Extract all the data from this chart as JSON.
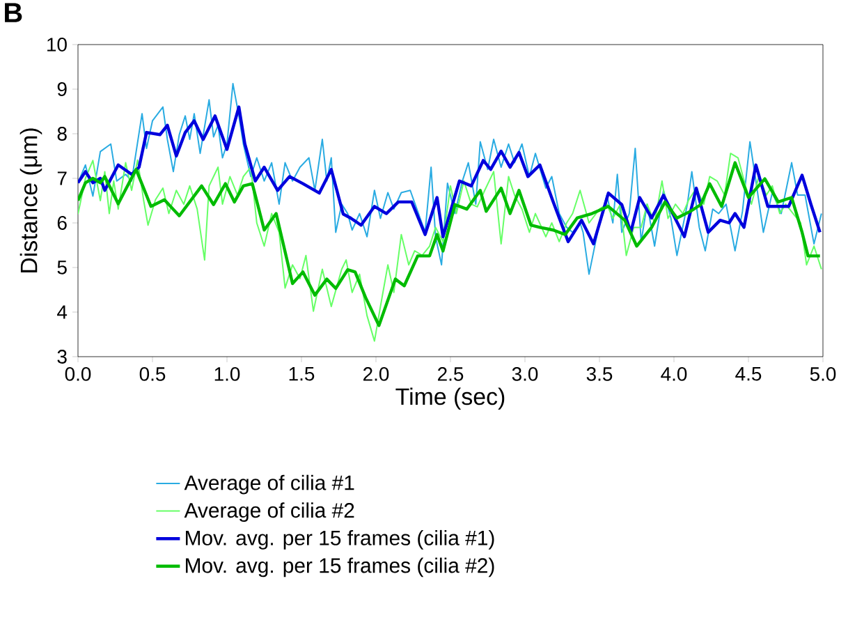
{
  "chart_data": {
    "type": "line",
    "xlabel": "Time (sec)",
    "ylabel": "Distance (μm)",
    "xlim": [
      0,
      5
    ],
    "ylim": [
      3,
      10
    ],
    "xticks": [
      {
        "value": 0,
        "label": "0.0"
      },
      {
        "value": 0.5,
        "label": "0.5"
      },
      {
        "value": 1,
        "label": "1.0"
      },
      {
        "value": 1.5,
        "label": "1.5"
      },
      {
        "value": 2,
        "label": "2.0"
      },
      {
        "value": 2.5,
        "label": "2.5"
      },
      {
        "value": 3,
        "label": "3.0"
      },
      {
        "value": 3.5,
        "label": "3.5"
      },
      {
        "value": 4,
        "label": "4.0"
      },
      {
        "value": 4.5,
        "label": "4.5"
      },
      {
        "value": 5,
        "label": "5.0"
      }
    ],
    "yticks": [
      3,
      4,
      5,
      6,
      7,
      8,
      9,
      10
    ],
    "legend": "bottom",
    "marker": "none",
    "line_style": "solid",
    "annotations": [
      "B"
    ],
    "series": [
      {
        "name": "Average of cilia #1",
        "color": "#29abe2",
        "x": [
          0,
          0.05,
          0.1,
          0.15,
          0.22,
          0.26,
          0.32,
          0.36,
          0.43,
          0.46,
          0.5,
          0.57,
          0.6,
          0.64,
          0.68,
          0.72,
          0.75,
          0.78,
          0.82,
          0.88,
          0.91,
          0.94,
          0.97,
          1.0,
          1.04,
          1.08,
          1.11,
          1.16,
          1.2,
          1.25,
          1.3,
          1.35,
          1.39,
          1.44,
          1.49,
          1.55,
          1.59,
          1.64,
          1.67,
          1.7,
          1.73,
          1.77,
          1.81,
          1.84,
          1.89,
          1.94,
          1.99,
          2.03,
          2.08,
          2.12,
          2.17,
          2.23,
          2.28,
          2.33,
          2.37,
          2.4,
          2.44,
          2.48,
          2.53,
          2.58,
          2.62,
          2.67,
          2.7,
          2.75,
          2.79,
          2.84,
          2.89,
          2.93,
          2.98,
          3.03,
          3.07,
          3.14,
          3.18,
          3.23,
          3.28,
          3.32,
          3.37,
          3.39,
          3.43,
          3.5,
          3.55,
          3.59,
          3.62,
          3.65,
          3.7,
          3.74,
          3.78,
          3.82,
          3.87,
          3.93,
          3.98,
          4.02,
          4.09,
          4.12,
          4.17,
          4.21,
          4.26,
          4.3,
          4.35,
          4.41,
          4.46,
          4.51,
          4.55,
          4.6,
          4.66,
          4.72,
          4.79,
          4.83,
          4.88,
          4.94,
          4.99
        ],
        "values": [
          6.9,
          7.3,
          6.6,
          7.6,
          7.77,
          6.94,
          7.09,
          6.94,
          8.45,
          7.67,
          8.29,
          8.6,
          7.875,
          7.15,
          7.98,
          8.4,
          7.875,
          8.45,
          7.56,
          8.76,
          7.93,
          8.19,
          7.46,
          7.77,
          9.125,
          8.4,
          7.77,
          7.04,
          7.46,
          6.94,
          7.35,
          6.42,
          7.35,
          6.94,
          7.25,
          7.46,
          6.73,
          7.875,
          6.94,
          7.46,
          5.79,
          6.42,
          6.21,
          5.84,
          6.21,
          5.69,
          6.73,
          6.1,
          6.68,
          6.31,
          6.68,
          6.73,
          6.26,
          5.79,
          7.25,
          5.69,
          5.06,
          6.89,
          6.21,
          6.94,
          7.35,
          6.42,
          7.82,
          7.2,
          7.875,
          7.25,
          7.77,
          7.35,
          7.77,
          7.04,
          7.56,
          6.78,
          7.04,
          6.21,
          5.9,
          5.79,
          6.0,
          5.79,
          4.85,
          6.0,
          6.625,
          6.0,
          7.09,
          5.79,
          6.21,
          7.67,
          5.58,
          6.42,
          5.48,
          6.73,
          6.1,
          5.27,
          6.42,
          7.15,
          5.9,
          5.375,
          6.31,
          6.21,
          6.42,
          5.375,
          6.26,
          7.82,
          6.94,
          5.79,
          6.68,
          6.21,
          7.35,
          6.625,
          6.625,
          5.53,
          6.21
        ]
      },
      {
        "name": "Average of cilia #2",
        "color": "#66ff66",
        "x": [
          0,
          0.05,
          0.1,
          0.15,
          0.18,
          0.21,
          0.24,
          0.27,
          0.32,
          0.36,
          0.4,
          0.44,
          0.47,
          0.52,
          0.57,
          0.61,
          0.66,
          0.71,
          0.75,
          0.8,
          0.85,
          0.88,
          0.94,
          0.97,
          1.02,
          1.07,
          1.11,
          1.16,
          1.2,
          1.25,
          1.3,
          1.35,
          1.39,
          1.44,
          1.49,
          1.53,
          1.58,
          1.64,
          1.7,
          1.77,
          1.8,
          1.84,
          1.89,
          1.94,
          1.99,
          2.03,
          2.08,
          2.12,
          2.17,
          2.22,
          2.26,
          2.31,
          2.36,
          2.4,
          2.45,
          2.5,
          2.54,
          2.59,
          2.64,
          2.68,
          2.73,
          2.79,
          2.84,
          2.89,
          2.93,
          2.98,
          3.03,
          3.07,
          3.14,
          3.18,
          3.23,
          3.28,
          3.32,
          3.37,
          3.43,
          3.5,
          3.55,
          3.59,
          3.64,
          3.68,
          3.73,
          3.78,
          3.82,
          3.87,
          3.92,
          3.96,
          4.01,
          4.06,
          4.1,
          4.15,
          4.2,
          4.24,
          4.29,
          4.34,
          4.38,
          4.43,
          4.48,
          4.52,
          4.57,
          4.62,
          4.66,
          4.71,
          4.75,
          4.8,
          4.85,
          4.89,
          4.94,
          4.99
        ],
        "values": [
          6.2,
          7.0,
          7.4,
          6.5,
          7.15,
          6.21,
          6.94,
          6.31,
          7.35,
          6.73,
          7.41,
          6.52,
          5.95,
          6.52,
          6.78,
          6.21,
          6.73,
          6.42,
          6.83,
          6.31,
          5.17,
          6.83,
          7.25,
          6.42,
          7.04,
          6.625,
          7.04,
          7.25,
          6.0,
          5.48,
          6.21,
          5.79,
          4.54,
          5.06,
          4.75,
          5.27,
          4.02,
          4.96,
          4.125,
          4.96,
          5.17,
          4.44,
          4.85,
          3.92,
          3.35,
          4.125,
          5.06,
          4.44,
          5.74,
          5.06,
          5.375,
          5.27,
          5.48,
          5.9,
          5.58,
          6.83,
          6.21,
          6.94,
          6.42,
          6.36,
          6.73,
          7.15,
          5.53,
          7.04,
          6.625,
          6.31,
          5.79,
          6.21,
          5.69,
          6.0,
          5.58,
          6.0,
          6.21,
          6.73,
          6.0,
          6.31,
          6.42,
          6.1,
          6.42,
          5.27,
          5.9,
          5.9,
          6.42,
          6.0,
          6.94,
          6.1,
          6.42,
          6.21,
          6.52,
          6.78,
          6.42,
          7.04,
          6.94,
          6.625,
          7.56,
          7.46,
          6.83,
          6.42,
          7.04,
          6.625,
          6.83,
          6.21,
          6.42,
          6.21,
          6.0,
          5.06,
          5.48,
          4.96
        ]
      },
      {
        "name": "Mov. avg. per 15 frames (cilia #1)",
        "color": "#0000dd",
        "x": [
          0,
          0.05,
          0.1,
          0.15,
          0.18,
          0.27,
          0.36,
          0.41,
          0.46,
          0.55,
          0.6,
          0.66,
          0.72,
          0.78,
          0.84,
          0.92,
          1.0,
          1.08,
          1.12,
          1.19,
          1.25,
          1.34,
          1.42,
          1.51,
          1.62,
          1.7,
          1.78,
          1.83,
          1.9,
          1.99,
          2.07,
          2.15,
          2.24,
          2.33,
          2.41,
          2.45,
          2.56,
          2.64,
          2.72,
          2.77,
          2.84,
          2.9,
          2.96,
          3.02,
          3.1,
          3.19,
          3.29,
          3.38,
          3.46,
          3.56,
          3.65,
          3.71,
          3.77,
          3.85,
          3.93,
          4.07,
          4.15,
          4.23,
          4.31,
          4.37,
          4.41,
          4.47,
          4.55,
          4.63,
          4.71,
          4.77,
          4.86,
          4.92,
          4.98
        ],
        "values": [
          6.9,
          7.15,
          6.9,
          7.0,
          6.73,
          7.3,
          7.09,
          7.25,
          8.03,
          7.98,
          8.19,
          7.5,
          8.03,
          8.29,
          7.87,
          8.4,
          7.65,
          8.6,
          7.77,
          6.94,
          7.25,
          6.73,
          7.04,
          6.88,
          6.67,
          7.2,
          6.2,
          6.11,
          5.95,
          6.37,
          6.21,
          6.47,
          6.47,
          5.74,
          6.57,
          5.69,
          6.94,
          6.83,
          7.4,
          7.2,
          7.61,
          7.25,
          7.58,
          7.04,
          7.3,
          6.47,
          5.58,
          6.06,
          5.53,
          6.67,
          6.41,
          5.79,
          6.57,
          6.11,
          6.62,
          5.69,
          6.78,
          5.79,
          6.06,
          6.0,
          6.21,
          5.9,
          7.3,
          6.37,
          6.37,
          6.37,
          7.07,
          6.41,
          5.79
        ]
      },
      {
        "name": "Mov. avg. per 15 frames (cilia #2)",
        "color": "#00bb00",
        "x": [
          0,
          0.05,
          0.1,
          0.15,
          0.18,
          0.27,
          0.39,
          0.49,
          0.58,
          0.68,
          0.83,
          0.91,
          0.99,
          1.05,
          1.11,
          1.17,
          1.25,
          1.33,
          1.44,
          1.51,
          1.59,
          1.67,
          1.73,
          1.81,
          1.86,
          1.93,
          2.02,
          2.13,
          2.19,
          2.28,
          2.36,
          2.41,
          2.45,
          2.53,
          2.61,
          2.7,
          2.74,
          2.84,
          2.9,
          2.96,
          3.04,
          3.1,
          3.19,
          3.27,
          3.35,
          3.45,
          3.56,
          3.67,
          3.75,
          3.85,
          3.94,
          4.02,
          4.11,
          4.18,
          4.24,
          4.32,
          4.41,
          4.5,
          4.61,
          4.7,
          4.79,
          4.86,
          4.9,
          4.98
        ],
        "values": [
          6.5,
          6.9,
          7.0,
          6.9,
          7.04,
          6.43,
          7.2,
          6.37,
          6.52,
          6.16,
          6.83,
          6.41,
          6.88,
          6.47,
          6.83,
          6.88,
          5.84,
          6.21,
          4.64,
          4.9,
          4.38,
          4.74,
          4.53,
          4.95,
          4.9,
          4.33,
          3.7,
          4.74,
          4.59,
          5.26,
          5.26,
          5.74,
          5.37,
          6.41,
          6.31,
          6.73,
          6.26,
          6.78,
          6.21,
          6.73,
          5.95,
          5.9,
          5.84,
          5.74,
          6.11,
          6.21,
          6.37,
          6.06,
          5.48,
          5.9,
          6.47,
          6.11,
          6.26,
          6.41,
          6.88,
          6.37,
          7.35,
          6.57,
          6.99,
          6.47,
          6.57,
          5.79,
          5.26,
          5.26
        ]
      }
    ]
  }
}
